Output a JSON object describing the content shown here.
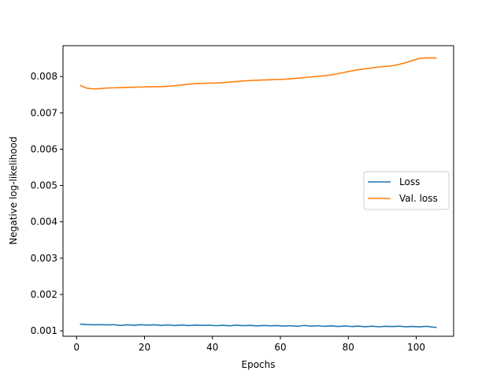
{
  "chart_data": {
    "type": "line",
    "xlabel": "Epochs",
    "ylabel": "Negative log-likelihood",
    "xlim": [
      -4,
      111
    ],
    "ylim": [
      0.00085,
      0.00885
    ],
    "xticks": [
      0,
      20,
      40,
      60,
      80,
      100
    ],
    "xtick_labels": [
      "0",
      "20",
      "40",
      "60",
      "80",
      "100"
    ],
    "yticks": [
      0.001,
      0.002,
      0.003,
      0.004,
      0.005,
      0.006,
      0.007,
      0.008
    ],
    "ytick_labels": [
      "0.001",
      "0.002",
      "0.003",
      "0.004",
      "0.005",
      "0.006",
      "0.007",
      "0.008"
    ],
    "legend_position": "center-right",
    "grid": false,
    "x": [
      1,
      3,
      5,
      7,
      9,
      11,
      13,
      15,
      17,
      19,
      21,
      23,
      25,
      27,
      29,
      31,
      33,
      35,
      37,
      39,
      41,
      43,
      45,
      47,
      49,
      51,
      53,
      55,
      57,
      59,
      61,
      63,
      65,
      67,
      69,
      71,
      73,
      75,
      77,
      79,
      81,
      83,
      85,
      87,
      89,
      91,
      93,
      95,
      97,
      99,
      101,
      103,
      105,
      106
    ],
    "series": [
      {
        "name": "Loss",
        "color": "#1f77b4",
        "values": [
          0.001185,
          0.001172,
          0.001165,
          0.001168,
          0.001162,
          0.00117,
          0.001148,
          0.001166,
          0.001152,
          0.001168,
          0.001158,
          0.001165,
          0.00115,
          0.001162,
          0.001146,
          0.00116,
          0.001144,
          0.001158,
          0.00115,
          0.001156,
          0.00114,
          0.001152,
          0.001138,
          0.001154,
          0.001142,
          0.00115,
          0.001136,
          0.001146,
          0.001138,
          0.001144,
          0.00113,
          0.00114,
          0.001126,
          0.001148,
          0.001128,
          0.00114,
          0.001124,
          0.001136,
          0.00112,
          0.001134,
          0.001118,
          0.00113,
          0.001112,
          0.001128,
          0.00111,
          0.001124,
          0.001116,
          0.001128,
          0.001112,
          0.00112,
          0.001108,
          0.001124,
          0.0011,
          0.001095
        ]
      },
      {
        "name": "Val. loss",
        "color": "#ff7f0e",
        "values": [
          0.00776,
          0.00768,
          0.00766,
          0.00767,
          0.007685,
          0.00769,
          0.007695,
          0.0077,
          0.007708,
          0.007712,
          0.007715,
          0.007718,
          0.007722,
          0.007735,
          0.00775,
          0.00777,
          0.00779,
          0.007805,
          0.007812,
          0.007818,
          0.007822,
          0.007832,
          0.007848,
          0.007862,
          0.007878,
          0.00789,
          0.007898,
          0.007905,
          0.007912,
          0.007918,
          0.007925,
          0.007938,
          0.007955,
          0.007972,
          0.007988,
          0.008005,
          0.008022,
          0.008045,
          0.00808,
          0.008118,
          0.008155,
          0.00819,
          0.008215,
          0.00824,
          0.008262,
          0.00828,
          0.0083,
          0.008335,
          0.008385,
          0.008445,
          0.0085,
          0.008515,
          0.008512,
          0.008508
        ]
      }
    ]
  }
}
